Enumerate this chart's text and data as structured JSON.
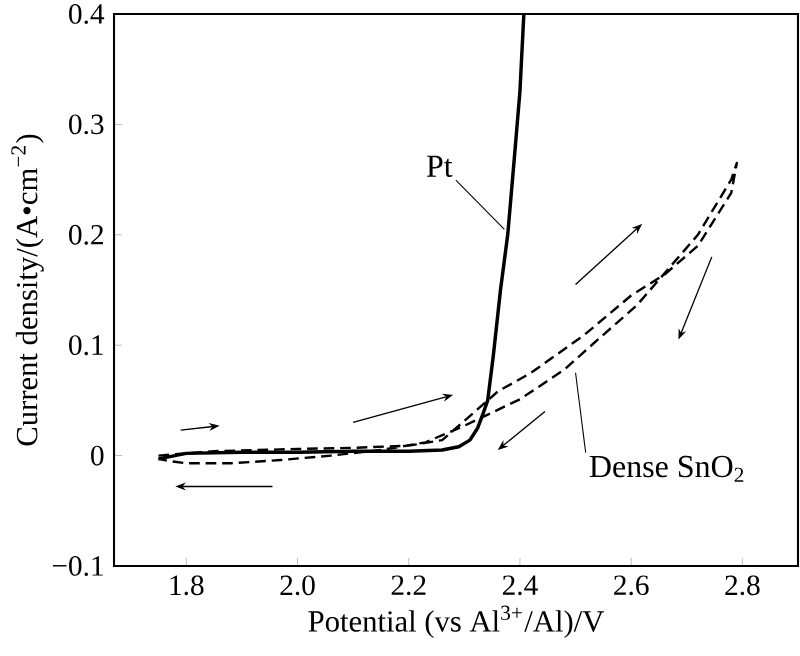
{
  "chart_data": {
    "type": "line",
    "xlabel": "Potential (vs Al$^{3+}$/Al)/V",
    "ylabel": "Current density/(A•cm$^{−2}$)",
    "xlim": [
      1.67,
      2.9
    ],
    "ylim": [
      -0.1,
      0.4
    ],
    "xticks": [
      1.8,
      {
        "value": 2,
        "label": "2.0"
      },
      2.2,
      2.4,
      2.6,
      2.8
    ],
    "yticks": [
      {
        "value": -0.1,
        "label": "−0.1"
      },
      0,
      0.1,
      0.2,
      0.3,
      0.4
    ],
    "grid": false,
    "marker": "none",
    "series": [
      {
        "name": "Pt",
        "color": "#000000",
        "line_style": "solid",
        "x": [
          1.75,
          1.8,
          1.9,
          2.0,
          2.1,
          2.2,
          2.26,
          2.29,
          2.31,
          2.324,
          2.333,
          2.342,
          2.352,
          2.365,
          2.378,
          2.39,
          2.4,
          2.407
        ],
        "values": [
          -0.003,
          0.002,
          0.003,
          0.003,
          0.004,
          0.004,
          0.005,
          0.008,
          0.014,
          0.025,
          0.037,
          0.05,
          0.09,
          0.15,
          0.2,
          0.27,
          0.33,
          0.4
        ]
      },
      {
        "name": "Dense SnO$_{2}$",
        "color": "#000000",
        "line_style": "dashed",
        "x": [
          1.75,
          1.85,
          2.0,
          2.1,
          2.2,
          2.26,
          2.29,
          2.324,
          2.36,
          2.42,
          2.515,
          2.6,
          2.66,
          2.72,
          2.78,
          2.79,
          2.78,
          2.72,
          2.61,
          2.54,
          2.48,
          2.4,
          2.3,
          2.23,
          2.15,
          2.06,
          1.97,
          1.88,
          1.8,
          1.77,
          1.75
        ],
        "values": [
          0,
          0.004,
          0.006,
          0.007,
          0.009,
          0.014,
          0.027,
          0.042,
          0.058,
          0.075,
          0.109,
          0.145,
          0.164,
          0.19,
          0.238,
          0.265,
          0.25,
          0.2,
          0.136,
          0.105,
          0.078,
          0.051,
          0.027,
          0.012,
          0.005,
          0.0,
          -0.004,
          -0.007,
          -0.007,
          -0.005,
          -0.003
        ]
      }
    ]
  }
}
